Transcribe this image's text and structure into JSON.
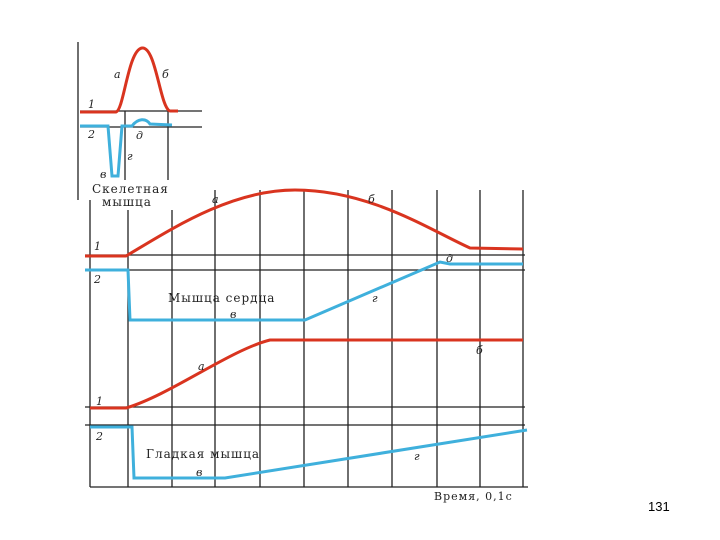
{
  "colors": {
    "curve1": "#d9341f",
    "curve2": "#3fb0dc",
    "grid": "#222222"
  },
  "panels": [
    {
      "title": "Скелетная мышца",
      "line1": "1",
      "line2": "2",
      "labels": {
        "a": "а",
        "b": "б",
        "v": "в",
        "g": "г",
        "d": "д"
      }
    },
    {
      "title": "Мышца сердца",
      "line1": "1",
      "line2": "2",
      "labels": {
        "a": "а",
        "b": "б",
        "v": "в",
        "g": "г",
        "d": "д"
      }
    },
    {
      "title": "Гладкая мышца",
      "line1": "1",
      "line2": "2",
      "labels": {
        "a": "а",
        "b": "б",
        "v": "в",
        "g": "г"
      }
    }
  ],
  "x_axis_label": "Время, 0,1с",
  "page_number": "131"
}
